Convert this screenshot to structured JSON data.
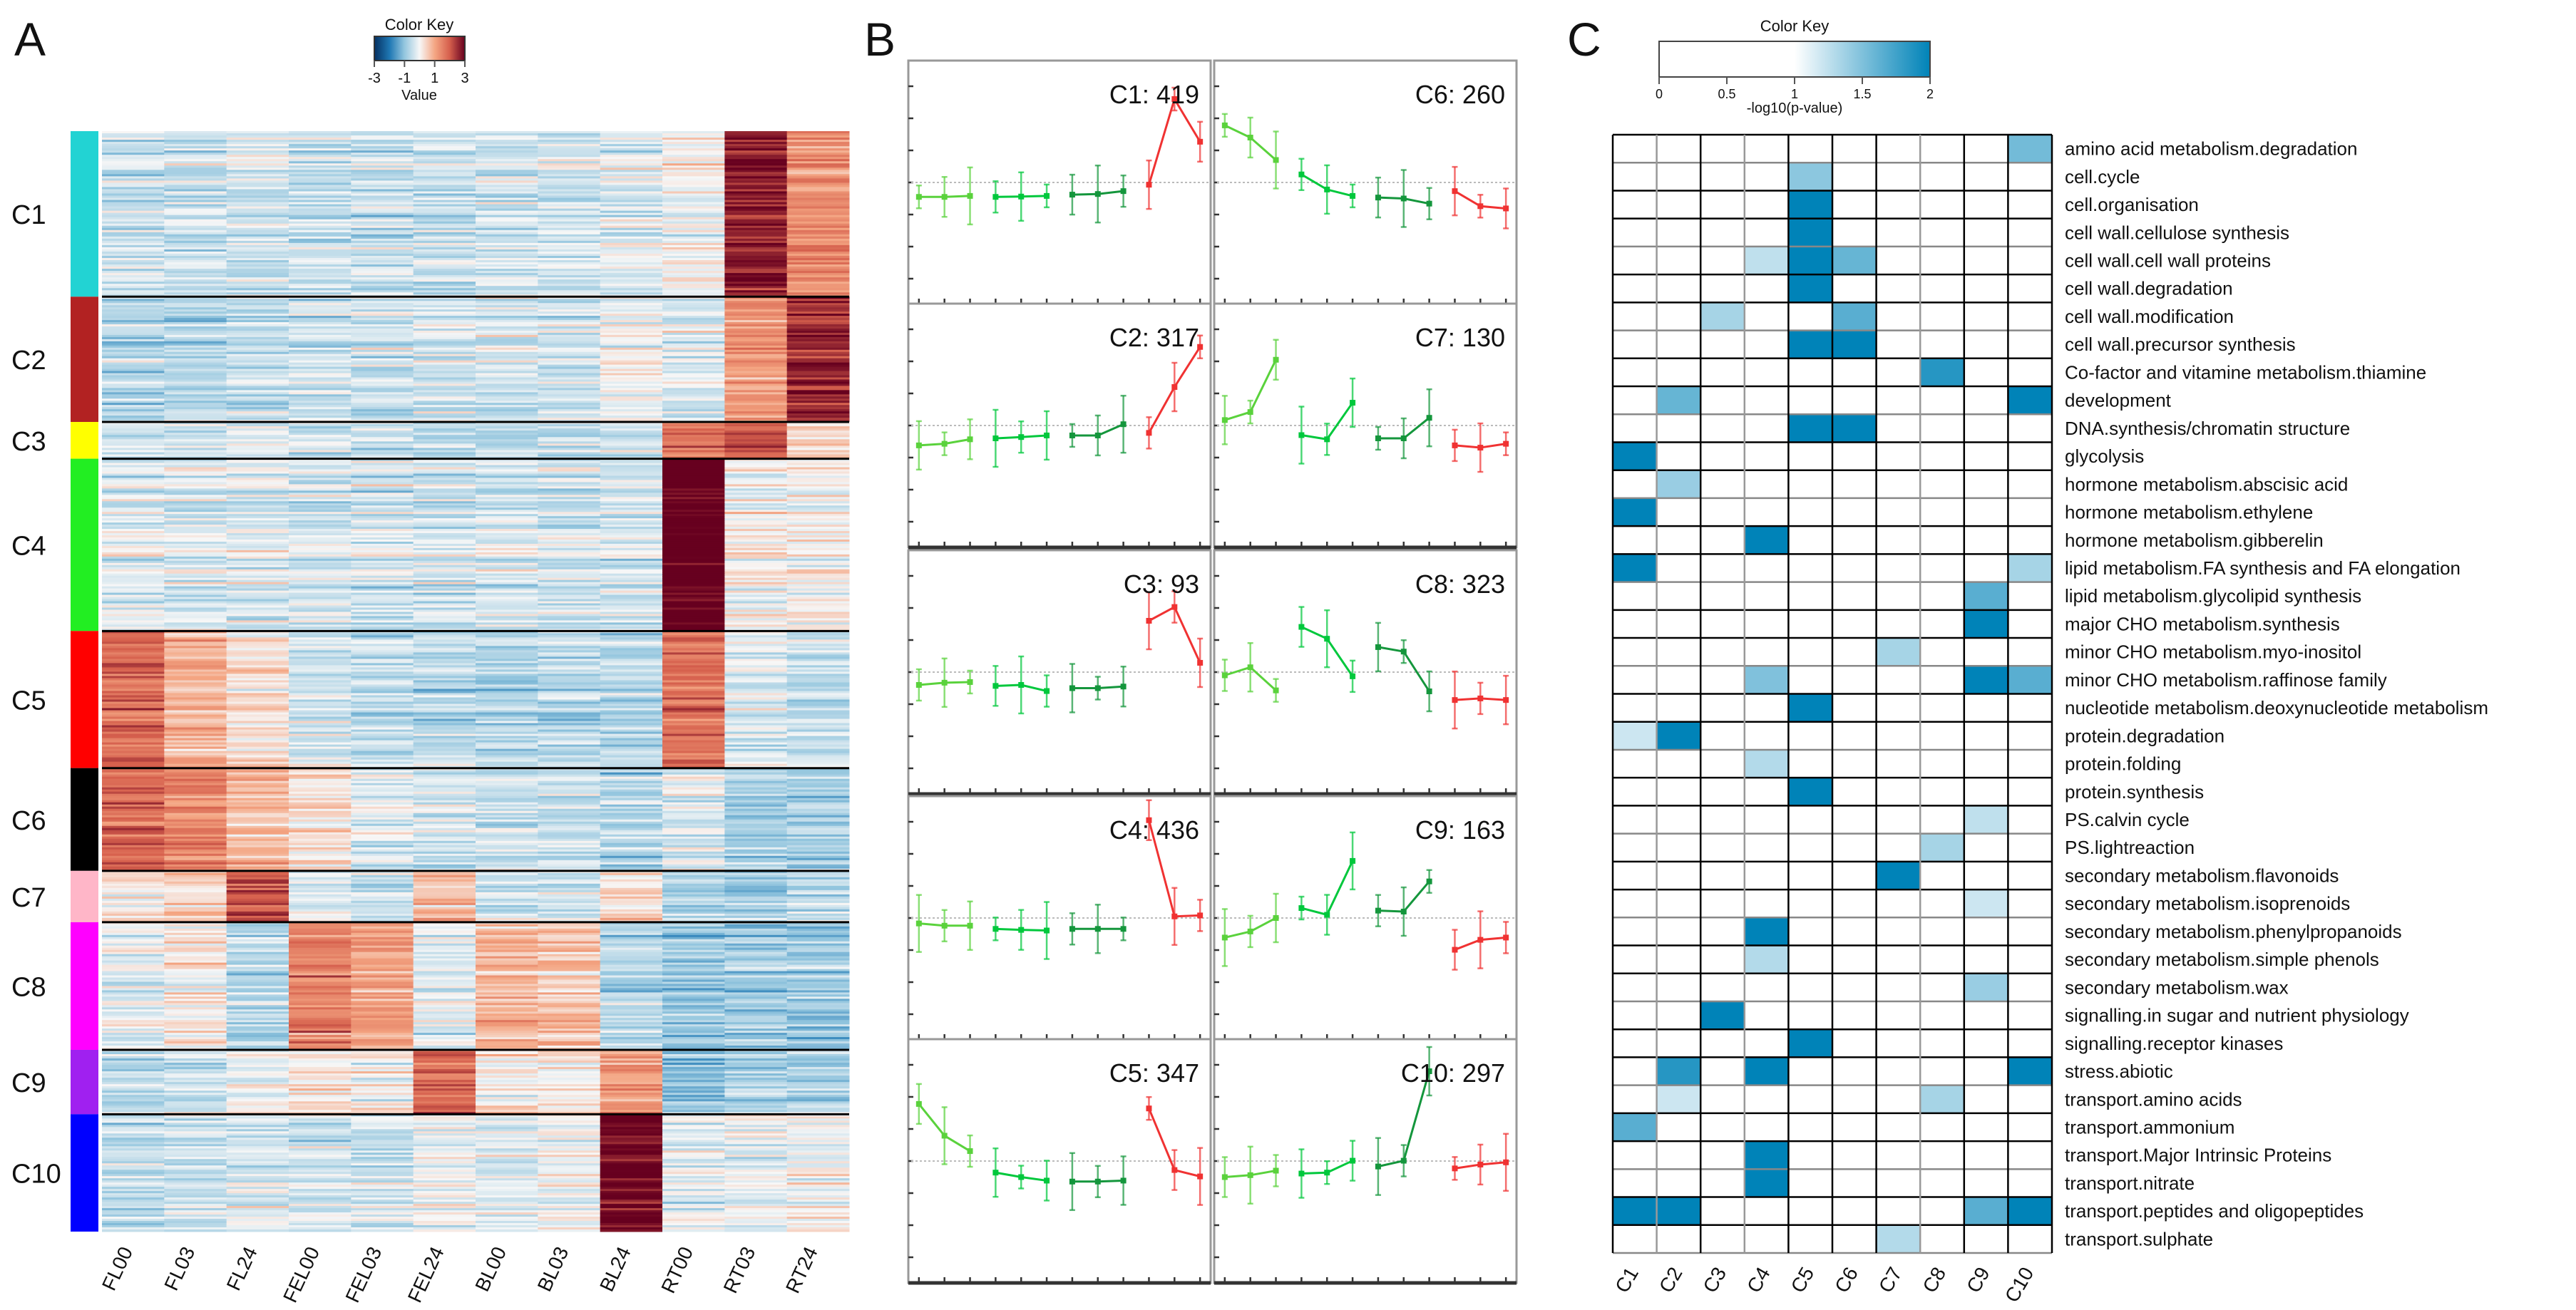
{
  "panel_labels": {
    "a": "A",
    "b": "B",
    "c": "C"
  },
  "chart_data": [
    {
      "type": "heatmap",
      "panel": "A",
      "color_key": {
        "title": "Color Key",
        "xlabel": "Value",
        "ticks": [
          "-3",
          "-1",
          "1",
          "3"
        ],
        "tick_values": [
          -3,
          -1,
          1,
          3
        ],
        "range": [
          -3,
          3
        ]
      },
      "columns": [
        "FL00",
        "FL03",
        "FL24",
        "FEL00",
        "FEL03",
        "FEL24",
        "BL00",
        "BL03",
        "BL24",
        "RT00",
        "RT03",
        "RT24"
      ],
      "clusters": [
        {
          "name": "C1",
          "color": "#22d3d3",
          "genes": 419
        },
        {
          "name": "C2",
          "color": "#b22222",
          "genes": 317
        },
        {
          "name": "C3",
          "color": "#ffff00",
          "genes": 93
        },
        {
          "name": "C4",
          "color": "#22ee22",
          "genes": 436
        },
        {
          "name": "C5",
          "color": "#ff0000",
          "genes": 347
        },
        {
          "name": "C6",
          "color": "#000000",
          "genes": 260
        },
        {
          "name": "C7",
          "color": "#ffb6c8",
          "genes": 130
        },
        {
          "name": "C8",
          "color": "#ff00ff",
          "genes": 323
        },
        {
          "name": "C9",
          "color": "#a020f0",
          "genes": 163
        },
        {
          "name": "C10",
          "color": "#0000ff",
          "genes": 297
        }
      ]
    },
    {
      "type": "line",
      "panel": "B",
      "ylim": [
        -3.8,
        3.8
      ],
      "groups": [
        {
          "name": "FL",
          "color": "#5ad23c"
        },
        {
          "name": "FEL",
          "color": "#00c83c"
        },
        {
          "name": "BL",
          "color": "#14963c"
        },
        {
          "name": "RT",
          "color": "#f03232"
        }
      ],
      "panels": [
        {
          "name": "C1",
          "label": "C1: 419",
          "values": [
            -0.45,
            -0.45,
            -0.42,
            -0.45,
            -0.44,
            -0.42,
            -0.38,
            -0.36,
            -0.27,
            -0.07,
            2.6,
            1.27
          ]
        },
        {
          "name": "C2",
          "label": "C2: 317",
          "values": [
            -0.62,
            -0.57,
            -0.43,
            -0.4,
            -0.36,
            -0.31,
            -0.31,
            -0.31,
            0.04,
            -0.23,
            1.2,
            2.45
          ]
        },
        {
          "name": "C3",
          "label": "C3: 93",
          "values": [
            -0.4,
            -0.33,
            -0.31,
            -0.43,
            -0.4,
            -0.59,
            -0.5,
            -0.5,
            -0.45,
            1.6,
            2.03,
            0.29
          ]
        },
        {
          "name": "C4",
          "label": "C4: 436",
          "values": [
            -0.17,
            -0.24,
            -0.24,
            -0.34,
            -0.37,
            -0.39,
            -0.34,
            -0.34,
            -0.34,
            3.05,
            0.05,
            0.08
          ]
        },
        {
          "name": "C5",
          "label": "C5: 347",
          "values": [
            1.78,
            0.79,
            0.31,
            -0.36,
            -0.5,
            -0.61,
            -0.64,
            -0.64,
            -0.61,
            1.64,
            -0.28,
            -0.48
          ]
        },
        {
          "name": "C6",
          "label": "C6: 260",
          "values": [
            1.78,
            1.4,
            0.7,
            0.25,
            -0.22,
            -0.42,
            -0.47,
            -0.5,
            -0.66,
            -0.27,
            -0.74,
            -0.81
          ]
        },
        {
          "name": "C7",
          "label": "C7: 130",
          "values": [
            0.17,
            0.42,
            2.05,
            -0.3,
            -0.43,
            0.71,
            -0.4,
            -0.4,
            0.24,
            -0.62,
            -0.69,
            -0.57
          ]
        },
        {
          "name": "C8",
          "label": "C8: 323",
          "values": [
            -0.1,
            0.15,
            -0.57,
            1.41,
            1.04,
            -0.13,
            0.78,
            0.64,
            -0.6,
            -0.87,
            -0.82,
            -0.87
          ]
        },
        {
          "name": "C9",
          "label": "C9: 163",
          "values": [
            -0.61,
            -0.42,
            0.0,
            0.31,
            0.1,
            1.78,
            0.23,
            0.2,
            1.14,
            -0.99,
            -0.68,
            -0.61
          ]
        },
        {
          "name": "C10",
          "label": "C10: 297",
          "values": [
            -0.5,
            -0.44,
            -0.3,
            -0.39,
            -0.36,
            0.01,
            -0.17,
            0.01,
            2.8,
            -0.23,
            -0.11,
            -0.04
          ]
        }
      ]
    },
    {
      "type": "heatmap",
      "panel": "C",
      "color_key": {
        "title": "Color Key",
        "xlabel": "-log10(p-value)",
        "ticks": [
          "0",
          "0.5",
          "1",
          "1.5",
          "2"
        ],
        "tick_values": [
          0,
          0.5,
          1,
          1.5,
          2
        ],
        "range": [
          0,
          2
        ],
        "high_color": "#0083b8"
      },
      "columns": [
        "C1",
        "C2",
        "C3",
        "C4",
        "C5",
        "C6",
        "C7",
        "C8",
        "C9",
        "C10"
      ],
      "rows": [
        {
          "label": "amino acid metabolism.degradation",
          "values": [
            0,
            0,
            0,
            0,
            0,
            0,
            0,
            0,
            0,
            1.55
          ]
        },
        {
          "label": "cell.cycle",
          "values": [
            0,
            0,
            0,
            0,
            1.45,
            0,
            0,
            0,
            0,
            0
          ]
        },
        {
          "label": "cell.organisation",
          "values": [
            0,
            0,
            0,
            0,
            2,
            0,
            0,
            0,
            0,
            0
          ]
        },
        {
          "label": "cell wall.cellulose synthesis",
          "values": [
            0,
            0,
            0,
            0,
            2,
            0,
            0,
            0,
            0,
            0
          ]
        },
        {
          "label": "cell wall.cell wall proteins",
          "values": [
            0,
            0,
            0,
            1.25,
            2,
            1.6,
            0,
            0,
            0,
            0
          ]
        },
        {
          "label": "cell wall.degradation",
          "values": [
            0,
            0,
            0,
            0,
            2,
            0,
            0,
            0,
            0,
            0
          ]
        },
        {
          "label": "cell wall.modification",
          "values": [
            0,
            0,
            1.35,
            0,
            0,
            1.65,
            0,
            0,
            0,
            0
          ]
        },
        {
          "label": "cell wall.precursor synthesis",
          "values": [
            0,
            0,
            0,
            0,
            2,
            2,
            0,
            0,
            0,
            0
          ]
        },
        {
          "label": "Co-factor and vitamine metabolism.thiamine",
          "values": [
            0,
            0,
            0,
            0,
            0,
            0,
            0,
            1.85,
            0,
            0
          ]
        },
        {
          "label": "development",
          "values": [
            0,
            1.6,
            0,
            0,
            0,
            0,
            0,
            0,
            0,
            2
          ]
        },
        {
          "label": "DNA.synthesis/chromatin structure",
          "values": [
            0,
            0,
            0,
            0,
            2,
            2,
            0,
            0,
            0,
            0
          ]
        },
        {
          "label": "glycolysis",
          "values": [
            2,
            0,
            0,
            0,
            0,
            0,
            0,
            0,
            0,
            0
          ]
        },
        {
          "label": "hormone metabolism.abscisic acid",
          "values": [
            0,
            1.4,
            0,
            0,
            0,
            0,
            0,
            0,
            0,
            0
          ]
        },
        {
          "label": "hormone metabolism.ethylene",
          "values": [
            2,
            0,
            0,
            0,
            0,
            0,
            0,
            0,
            0,
            0
          ]
        },
        {
          "label": "hormone metabolism.gibberelin",
          "values": [
            0,
            0,
            0,
            2,
            0,
            0,
            0,
            0,
            0,
            0
          ]
        },
        {
          "label": "lipid metabolism.FA synthesis and FA elongation",
          "values": [
            2,
            0,
            0,
            0,
            0,
            0,
            0,
            0,
            0,
            1.35
          ]
        },
        {
          "label": "lipid metabolism.glycolipid synthesis",
          "values": [
            0,
            0,
            0,
            0,
            0,
            0,
            0,
            0,
            1.65,
            0
          ]
        },
        {
          "label": "major CHO metabolism.synthesis",
          "values": [
            0,
            0,
            0,
            0,
            0,
            0,
            0,
            0,
            2,
            0
          ]
        },
        {
          "label": "minor CHO metabolism.myo-inositol",
          "values": [
            0,
            0,
            0,
            0,
            0,
            0,
            1.35,
            0,
            0,
            0
          ]
        },
        {
          "label": "minor CHO metabolism.raffinose family",
          "values": [
            0,
            0,
            0,
            1.5,
            0,
            0,
            0,
            0,
            2,
            1.65
          ]
        },
        {
          "label": "nucleotide metabolism.deoxynucleotide metabolism",
          "values": [
            0,
            0,
            0,
            0,
            2,
            0,
            0,
            0,
            0,
            0
          ]
        },
        {
          "label": "protein.degradation",
          "values": [
            1.2,
            2,
            0,
            0,
            0,
            0,
            0,
            0,
            0,
            0
          ]
        },
        {
          "label": "protein.folding",
          "values": [
            0,
            0,
            0,
            1.3,
            0,
            0,
            0,
            0,
            0,
            0
          ]
        },
        {
          "label": "protein.synthesis",
          "values": [
            0,
            0,
            0,
            0,
            2,
            0,
            0,
            0,
            0,
            0
          ]
        },
        {
          "label": "PS.calvin cycle",
          "values": [
            0,
            0,
            0,
            0,
            0,
            0,
            0,
            0,
            1.25,
            0
          ]
        },
        {
          "label": "PS.lightreaction",
          "values": [
            0,
            0,
            0,
            0,
            0,
            0,
            0,
            1.35,
            0,
            0
          ]
        },
        {
          "label": "secondary metabolism.flavonoids",
          "values": [
            0,
            0,
            0,
            0,
            0,
            0,
            2,
            0,
            0,
            0
          ]
        },
        {
          "label": "secondary metabolism.isoprenoids",
          "values": [
            0,
            0,
            0,
            0,
            0,
            0,
            0,
            0,
            1.2,
            0
          ]
        },
        {
          "label": "secondary metabolism.phenylpropanoids",
          "values": [
            0,
            0,
            0,
            2,
            0,
            0,
            0,
            0,
            0,
            0
          ]
        },
        {
          "label": "secondary metabolism.simple phenols",
          "values": [
            0,
            0,
            0,
            1.3,
            0,
            0,
            0,
            0,
            0,
            0
          ]
        },
        {
          "label": "secondary metabolism.wax",
          "values": [
            0,
            0,
            0,
            0,
            0,
            0,
            0,
            0,
            1.4,
            0
          ]
        },
        {
          "label": "signalling.in sugar and nutrient physiology",
          "values": [
            0,
            0,
            2,
            0,
            0,
            0,
            0,
            0,
            0,
            0
          ]
        },
        {
          "label": "signalling.receptor kinases",
          "values": [
            0,
            0,
            0,
            0,
            2,
            0,
            0,
            0,
            0,
            0
          ]
        },
        {
          "label": "stress.abiotic",
          "values": [
            0,
            1.85,
            0,
            2,
            0,
            0,
            0,
            0,
            0,
            2
          ]
        },
        {
          "label": "transport.amino acids",
          "values": [
            0,
            1.2,
            0,
            0,
            0,
            0,
            0,
            1.35,
            0,
            0
          ]
        },
        {
          "label": "transport.ammonium",
          "values": [
            1.65,
            0,
            0,
            0,
            0,
            0,
            0,
            0,
            0,
            0
          ]
        },
        {
          "label": "transport.Major Intrinsic Proteins",
          "values": [
            0,
            0,
            0,
            2,
            0,
            0,
            0,
            0,
            0,
            0
          ]
        },
        {
          "label": "transport.nitrate",
          "values": [
            0,
            0,
            0,
            2,
            0,
            0,
            0,
            0,
            0,
            0
          ]
        },
        {
          "label": "transport.peptides and oligopeptides",
          "values": [
            2,
            2,
            0,
            0,
            0,
            0,
            0,
            0,
            1.65,
            2
          ]
        },
        {
          "label": "transport.sulphate",
          "values": [
            0,
            0,
            0,
            0,
            0,
            0,
            1.3,
            0,
            0,
            0
          ]
        }
      ]
    }
  ]
}
